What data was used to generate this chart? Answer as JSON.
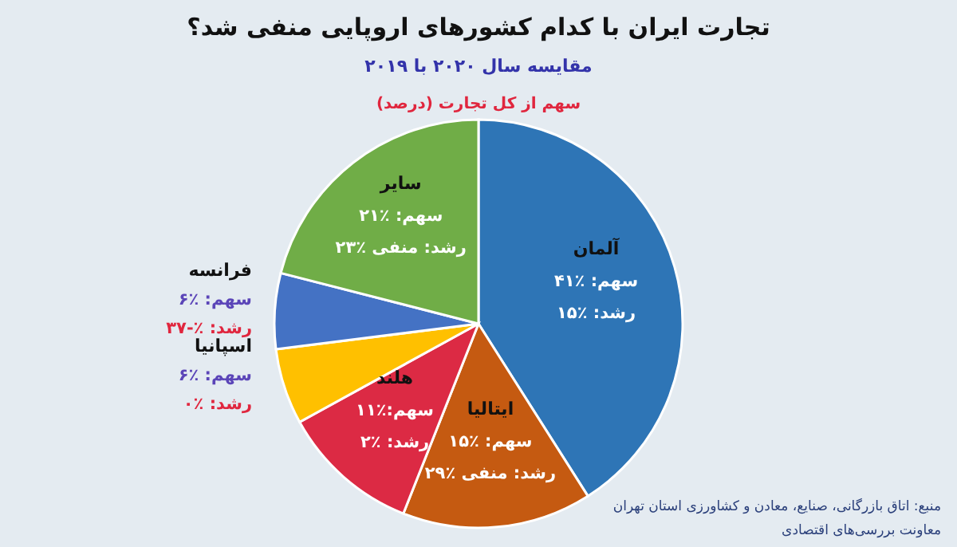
{
  "chart_data": {
    "type": "pie",
    "title": "تجارت ایران با کدام کشورهای اروپایی منفی شد؟",
    "subtitle": "مقایسه سال ۲۰۲۰ با ۲۰۱۹",
    "categories": [
      "آلمان",
      "ایتالیا",
      "هلند",
      "اسپانیا",
      "فرانسه",
      "سایر"
    ],
    "values": [
      41,
      15,
      11,
      6,
      6,
      21
    ],
    "colors": [
      "#2e75b6",
      "#c55a11",
      "#dc2a44",
      "#ffc000",
      "#4472c4",
      "#70ad47"
    ],
    "value_labels": [
      "سهم: ٪۴۱",
      "سهم: ٪۱۵",
      "سهم:٪۱۱",
      "سهم: ٪۶",
      "سهم: ٪۶",
      "سهم: ٪۲۱"
    ],
    "annotations": [
      {
        "text": "رشد: ٪۱۵",
        "x": "آلمان"
      },
      {
        "text": "رشد: منفی ٪۲۹",
        "x": "ایتالیا"
      },
      {
        "text": "رشد: ٪۲",
        "x": "هلند"
      },
      {
        "text": "رشد: ٪۰",
        "x": "اسپانیا"
      },
      {
        "text": "رشد: ٪-۳۷",
        "x": "فرانسه"
      },
      {
        "text": "رشد: منفی ٪۲۳",
        "x": "سایر"
      },
      "سهم از کل تجارت (درصد)",
      "منبع: اتاق بازرگانی، صنایع، معادن و کشاورزی استان تهران\nمعاونت بررسی‌های اقتصادی"
    ]
  }
}
